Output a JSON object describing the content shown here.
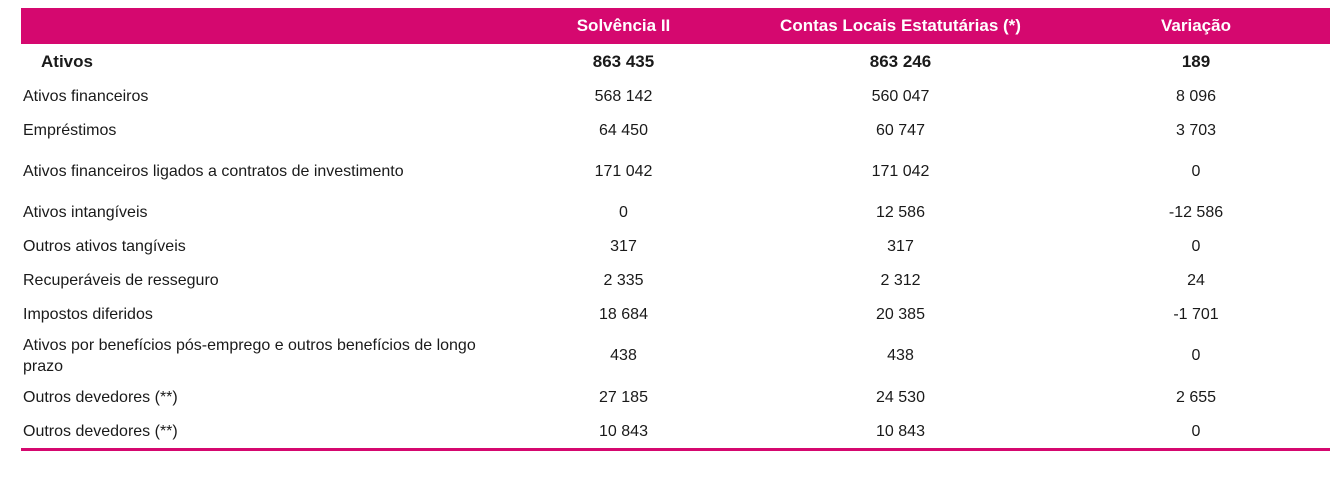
{
  "table": {
    "headers": [
      "",
      "Solvência II",
      "Contas Locais Estatutárias (*)",
      "Variação"
    ],
    "rows": [
      {
        "label": "Ativos",
        "solvencia": "863 435",
        "contas": "863 246",
        "variacao": "189"
      },
      {
        "label": "Ativos financeiros",
        "solvencia": "568 142",
        "contas": "560 047",
        "variacao": "8 096"
      },
      {
        "label": "Empréstimos",
        "solvencia": "64 450",
        "contas": "60 747",
        "variacao": "3 703"
      },
      {
        "label": "Ativos financeiros ligados a contratos de investimento",
        "solvencia": "171 042",
        "contas": "171 042",
        "variacao": "0"
      },
      {
        "label": "Ativos intangíveis",
        "solvencia": "0",
        "contas": "12 586",
        "variacao": "-12 586"
      },
      {
        "label": "Outros ativos tangíveis",
        "solvencia": "317",
        "contas": "317",
        "variacao": "0"
      },
      {
        "label": "Recuperáveis de resseguro",
        "solvencia": "2 335",
        "contas": "2 312",
        "variacao": "24"
      },
      {
        "label": "Impostos diferidos",
        "solvencia": "18 684",
        "contas": "20 385",
        "variacao": "-1 701"
      },
      {
        "label": "Ativos por benefícios pós-emprego e outros benefícios de longo prazo",
        "solvencia": "438",
        "contas": "438",
        "variacao": "0"
      },
      {
        "label": "Outros devedores (**)",
        "solvencia": "27 185",
        "contas": "24 530",
        "variacao": "2 655"
      },
      {
        "label": "Outros devedores (**)",
        "solvencia": "10 843",
        "contas": "10 843",
        "variacao": "0"
      }
    ]
  },
  "colors": {
    "header_bg": "#d5086f",
    "header_text": "#ffffff",
    "rule": "#d5086f"
  }
}
